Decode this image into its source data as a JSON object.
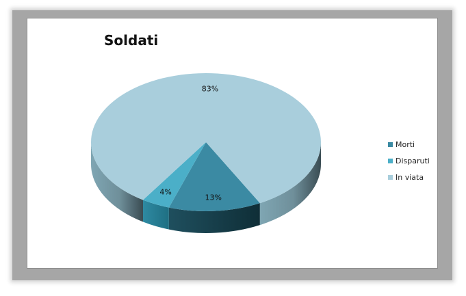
{
  "chart_data": {
    "type": "pie",
    "title": "Soldati",
    "slices": [
      {
        "label": "Morti",
        "value": 13,
        "display": "13%",
        "color": "#3b8aa3"
      },
      {
        "label": "Disparuti",
        "value": 4,
        "display": "4%",
        "color": "#4bafc8"
      },
      {
        "label": "In viata",
        "value": 83,
        "display": "83%",
        "color": "#a9cedc"
      }
    ],
    "legend_position": "right",
    "style": "3d"
  }
}
